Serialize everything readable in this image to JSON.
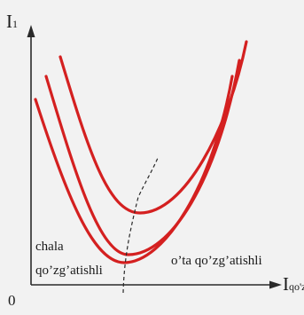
{
  "diagram": {
    "axes": {
      "y_label": "I",
      "y_label_subscript": "1",
      "x_label": "I",
      "x_label_subscript": "qo'z",
      "origin": "0"
    },
    "region_labels": {
      "left_line1": "chala",
      "left_line2": "qo’zg’atishli",
      "right": "o’ta qo’zg’atishli"
    },
    "curves": {
      "count": 3,
      "shape": "V-curves",
      "color": "#d42020"
    },
    "minimum_locus": {
      "style": "dashed",
      "color": "#2a2a2a"
    },
    "colors": {
      "background": "#f2f2f2",
      "axes": "#2a2a2a"
    }
  }
}
